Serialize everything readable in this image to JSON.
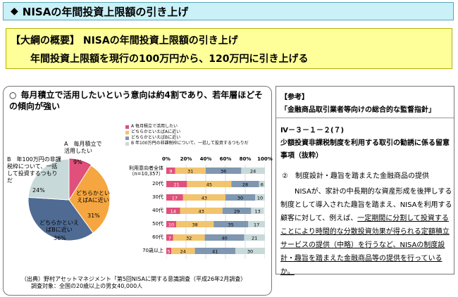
{
  "header": {
    "marker": "◆",
    "title": "NISAの年間投資上限額の引き上げ"
  },
  "outline": {
    "line1": "【大綱の概要】 NISAの年間投資上限額の引き上げ",
    "line2": "年間投資上限額を現行の100万円から、120万円に引き上げる"
  },
  "survey": {
    "marker": "○",
    "title": "毎月積立で活用したいという意向は約4割であり、若年層ほどその傾向が強い",
    "pie_labels": {
      "a": "A　毎月積立で活用したい",
      "a_val": "9%",
      "b": "B　年100万円の非課税枠について、一括して投資するつもりだ",
      "b_val": "24%",
      "ai": "どちらかといえばAに近い",
      "ai_val": "31%",
      "bi": "どちらかといえばBに近い",
      "bi_val": "36%"
    },
    "source1": "（出典）野村アセットマネジメント「第5回NISAに関する意識調査（平成26年2月調査）",
    "source2": "調査対象：全国の20歳以上の男女40,000人"
  },
  "chart_data": [
    {
      "type": "pie",
      "series": [
        {
          "values": [
            9,
            31,
            36,
            24
          ]
        }
      ],
      "categories": [
        "A 毎月積立で活用したい",
        "どちらかといえばAに近い",
        "どちらかといえばBに近い",
        "B 年100万円の非課税枠について、一括して投資するつもりだ"
      ],
      "colors": [
        "#e0507a",
        "#f5a640",
        "#4f6b93",
        "#c8d9da"
      ]
    },
    {
      "type": "bar",
      "stacked": true,
      "orientation": "horizontal",
      "legend": [
        {
          "label": "A 毎月積立で活用したい",
          "color": "#e0507a"
        },
        {
          "label": "どちらかといえばAに近い",
          "color": "#f2c46e"
        },
        {
          "label": "どちらかといえばBに近い",
          "color": "#7f97b0"
        },
        {
          "label": "B 年100万円の非課税枠について、一括して投資するつもりだ",
          "color": "#c8d9da"
        }
      ],
      "xticks": [
        "0%",
        "20%",
        "40%",
        "60%",
        "80%",
        "100%"
      ],
      "categories": [
        "利用意向者全体\n（n=10,357）",
        "20代",
        "30代",
        "40代",
        "50代",
        "60代",
        "70歳以上"
      ],
      "series": [
        {
          "name": "A 毎月積立で活用したい",
          "values": [
            9,
            21,
            17,
            14,
            10,
            7,
            5
          ]
        },
        {
          "name": "どちらかといえばAに近い",
          "values": [
            31,
            45,
            43,
            43,
            38,
            32,
            24
          ]
        },
        {
          "name": "どちらかといえばBに近い",
          "values": [
            36,
            28,
            30,
            29,
            35,
            40,
            41
          ]
        },
        {
          "name": "B 年100万円の非課税枠について、一括して投資するつもりだ",
          "values": [
            24,
            6,
            10,
            13,
            17,
            21,
            30
          ]
        }
      ],
      "labels": [
        [
          "9",
          "31",
          "36",
          "24"
        ],
        [
          "21",
          "45",
          "28",
          "6"
        ],
        [
          "17",
          "43",
          "30",
          "10"
        ],
        [
          "14",
          "43",
          "29",
          "13"
        ],
        [
          "10",
          "38",
          "35",
          "17"
        ],
        [
          "7",
          "32",
          "40",
          "21"
        ],
        [
          "5",
          "24",
          "41",
          "30"
        ]
      ]
    }
  ],
  "reference": {
    "head": "【参考】",
    "sub": "「金融商品取引業者等向けの総合的な監督指針」",
    "section": "Ⅳ－３－１－２(７)",
    "section_title": "少額投資非課税制度を利用する取引の勧誘に係る留意事項（抜粋）",
    "point": "②　制度設計・趣旨を踏まえた金融商品の提供",
    "body_plain": "NISAが、家計の中長期的な資産形成を後押しする制度として導入された趣旨を踏まえ、NISAを利用する顧客に対して、例えば、",
    "body_underline": "一定期間に分割して投資することにより時間的な分散投資効果が得られる定額積立サービスの提供（中略）を行うなど、NISAの制度設計・趣旨を踏まえた金融商品等の提供を行っているか。"
  }
}
